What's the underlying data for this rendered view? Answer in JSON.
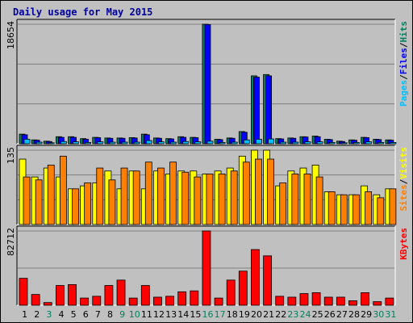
{
  "title": "Daily usage for May 2015",
  "chart_data": [
    {
      "type": "bar",
      "name": "pages-files-hits",
      "ymax_label": "18654",
      "legend": [
        {
          "label": "Pages",
          "color": "#00c0ff"
        },
        {
          "label": "/",
          "color": "#000000"
        },
        {
          "label": "Files",
          "color": "#0000ff"
        },
        {
          "label": "/",
          "color": "#000000"
        },
        {
          "label": "Hits",
          "color": "#00805c"
        }
      ],
      "categories": [
        "1",
        "2",
        "3",
        "4",
        "5",
        "6",
        "7",
        "8",
        "9",
        "10",
        "11",
        "12",
        "13",
        "14",
        "15",
        "16",
        "17",
        "18",
        "19",
        "20",
        "21",
        "22",
        "23",
        "24",
        "25",
        "26",
        "27",
        "28",
        "29",
        "30",
        "31"
      ],
      "series": [
        {
          "name": "Hits",
          "color": "#00805c",
          "values": [
            1500,
            600,
            400,
            1100,
            1100,
            800,
            1000,
            900,
            900,
            950,
            1500,
            900,
            800,
            1100,
            1000,
            18654,
            700,
            900,
            1900,
            10600,
            10800,
            800,
            900,
            1100,
            1200,
            700,
            400,
            600,
            1000,
            700,
            600
          ]
        },
        {
          "name": "Files",
          "color": "#0000ff",
          "values": [
            1400,
            550,
            350,
            1000,
            1000,
            700,
            950,
            850,
            850,
            900,
            1400,
            850,
            750,
            1000,
            950,
            18600,
            650,
            850,
            1800,
            10400,
            10600,
            750,
            850,
            1050,
            1100,
            650,
            350,
            550,
            950,
            650,
            550
          ]
        },
        {
          "name": "Pages",
          "color": "#00c0ff",
          "values": [
            700,
            250,
            150,
            350,
            300,
            200,
            300,
            250,
            250,
            250,
            500,
            300,
            250,
            350,
            300,
            400,
            200,
            250,
            600,
            700,
            750,
            250,
            250,
            300,
            300,
            200,
            150,
            200,
            300,
            200,
            200
          ]
        }
      ]
    },
    {
      "type": "bar",
      "name": "sites-visits",
      "ymax_label": "135",
      "legend": [
        {
          "label": "Sites",
          "color": "#ff8000"
        },
        {
          "label": "/",
          "color": "#000000"
        },
        {
          "label": "Visits",
          "color": "#ffff00"
        }
      ],
      "categories": [
        "1",
        "2",
        "3",
        "4",
        "5",
        "6",
        "7",
        "8",
        "9",
        "10",
        "11",
        "12",
        "13",
        "14",
        "15",
        "16",
        "17",
        "18",
        "19",
        "20",
        "21",
        "22",
        "23",
        "24",
        "25",
        "26",
        "27",
        "28",
        "29",
        "30",
        "31"
      ],
      "series": [
        {
          "name": "Visits",
          "color": "#ffff00",
          "values": [
            110,
            80,
            95,
            80,
            60,
            65,
            70,
            90,
            60,
            90,
            60,
            90,
            85,
            90,
            90,
            85,
            90,
            95,
            115,
            125,
            125,
            65,
            90,
            95,
            100,
            55,
            50,
            50,
            65,
            50,
            60
          ]
        },
        {
          "name": "Sites",
          "color": "#ff8000",
          "values": [
            80,
            75,
            100,
            115,
            60,
            70,
            95,
            75,
            95,
            90,
            105,
            95,
            105,
            88,
            80,
            85,
            85,
            90,
            105,
            110,
            110,
            70,
            85,
            85,
            80,
            55,
            50,
            50,
            55,
            45,
            60
          ]
        }
      ]
    },
    {
      "type": "bar",
      "name": "kbytes",
      "ymax_label": "82712",
      "legend": [
        {
          "label": "KBytes",
          "color": "#ff0000"
        }
      ],
      "categories": [
        "1",
        "2",
        "3",
        "4",
        "5",
        "6",
        "7",
        "8",
        "9",
        "10",
        "11",
        "12",
        "13",
        "14",
        "15",
        "16",
        "17",
        "18",
        "19",
        "20",
        "21",
        "22",
        "23",
        "24",
        "25",
        "26",
        "27",
        "28",
        "29",
        "30",
        "31"
      ],
      "series": [
        {
          "name": "KBytes",
          "color": "#ff0000",
          "values": [
            30000,
            12000,
            3000,
            22000,
            23000,
            8000,
            10000,
            22000,
            28000,
            8000,
            22000,
            9000,
            10000,
            15000,
            16000,
            82712,
            8000,
            28000,
            38000,
            62000,
            55000,
            10000,
            9000,
            13000,
            14000,
            9000,
            9000,
            5000,
            14000,
            4000,
            8000
          ]
        }
      ]
    }
  ],
  "x_labels": [
    {
      "text": "1",
      "color": "#000000"
    },
    {
      "text": "2",
      "color": "#000000"
    },
    {
      "text": "3",
      "color": "#00805c"
    },
    {
      "text": "4",
      "color": "#000000"
    },
    {
      "text": "5",
      "color": "#000000"
    },
    {
      "text": "6",
      "color": "#000000"
    },
    {
      "text": "7",
      "color": "#000000"
    },
    {
      "text": "8",
      "color": "#000000"
    },
    {
      "text": "9",
      "color": "#00805c"
    },
    {
      "text": "10",
      "color": "#00805c"
    },
    {
      "text": "11",
      "color": "#000000"
    },
    {
      "text": "12",
      "color": "#000000"
    },
    {
      "text": "13",
      "color": "#000000"
    },
    {
      "text": "14",
      "color": "#000000"
    },
    {
      "text": "15",
      "color": "#000000"
    },
    {
      "text": "16",
      "color": "#00805c"
    },
    {
      "text": "17",
      "color": "#00805c"
    },
    {
      "text": "18",
      "color": "#000000"
    },
    {
      "text": "19",
      "color": "#000000"
    },
    {
      "text": "20",
      "color": "#000000"
    },
    {
      "text": "21",
      "color": "#000000"
    },
    {
      "text": "22",
      "color": "#000000"
    },
    {
      "text": "23",
      "color": "#00805c"
    },
    {
      "text": "24",
      "color": "#00805c"
    },
    {
      "text": "25",
      "color": "#000000"
    },
    {
      "text": "26",
      "color": "#000000"
    },
    {
      "text": "27",
      "color": "#000000"
    },
    {
      "text": "28",
      "color": "#000000"
    },
    {
      "text": "29",
      "color": "#000000"
    },
    {
      "text": "30",
      "color": "#00805c"
    },
    {
      "text": "31",
      "color": "#00805c"
    }
  ]
}
